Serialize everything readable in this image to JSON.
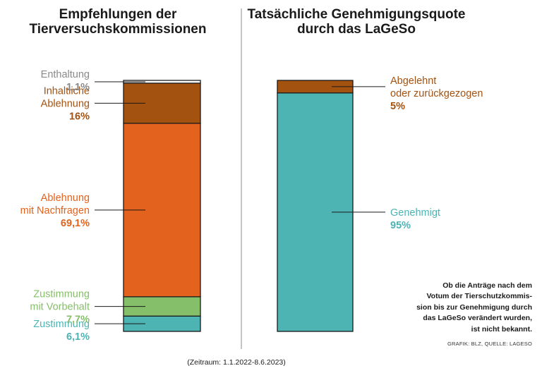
{
  "chart_data": [
    {
      "type": "bar",
      "stacked": true,
      "title_lines": [
        "Empfehlungen der",
        "Tierversuchskommissionen"
      ],
      "segments": [
        {
          "label_lines": [
            "Zustimmung"
          ],
          "value_label": "6,1%",
          "value": 6.1,
          "color": "#4db3b3"
        },
        {
          "label_lines": [
            "Zustimmung",
            "mit Vorbehalt"
          ],
          "value_label": "7,7%",
          "value": 7.7,
          "color": "#86bf6a"
        },
        {
          "label_lines": [
            "Ablehnung",
            "mit Nachfragen"
          ],
          "value_label": "69,1%",
          "value": 69.1,
          "color": "#e2621e"
        },
        {
          "label_lines": [
            "Inhaltliche",
            "Ablehnung"
          ],
          "value_label": "16%",
          "value": 16,
          "color": "#a35210"
        },
        {
          "label_lines": [
            "Enthaltung"
          ],
          "value_label": "1,1%",
          "value": 1.1,
          "color": "#ffffff",
          "text_color": "#8a8a8a"
        }
      ]
    },
    {
      "type": "bar",
      "stacked": true,
      "title_lines": [
        "Tatsächliche Genehmigungsquote",
        "durch das LaGeSo"
      ],
      "segments": [
        {
          "label_lines": [
            "Genehmigt"
          ],
          "value_label": "95%",
          "value": 95,
          "color": "#4db3b3"
        },
        {
          "label_lines": [
            "Abgelehnt",
            "oder zurückgezogen"
          ],
          "value_label": "5%",
          "value": 5,
          "color": "#a35210"
        }
      ]
    }
  ],
  "note_lines": [
    "Ob die Anträge nach dem",
    "Votum der Tierschutzkommis-",
    "sion bis zur Genehmigung durch",
    "das LaGeSo verändert wurden,",
    "ist nicht bekannt."
  ],
  "source": "GRAFIK: BLZ, QUELLE: LAGESO",
  "period": "(Zeitraum: 1.1.2022-8.6.2023)"
}
